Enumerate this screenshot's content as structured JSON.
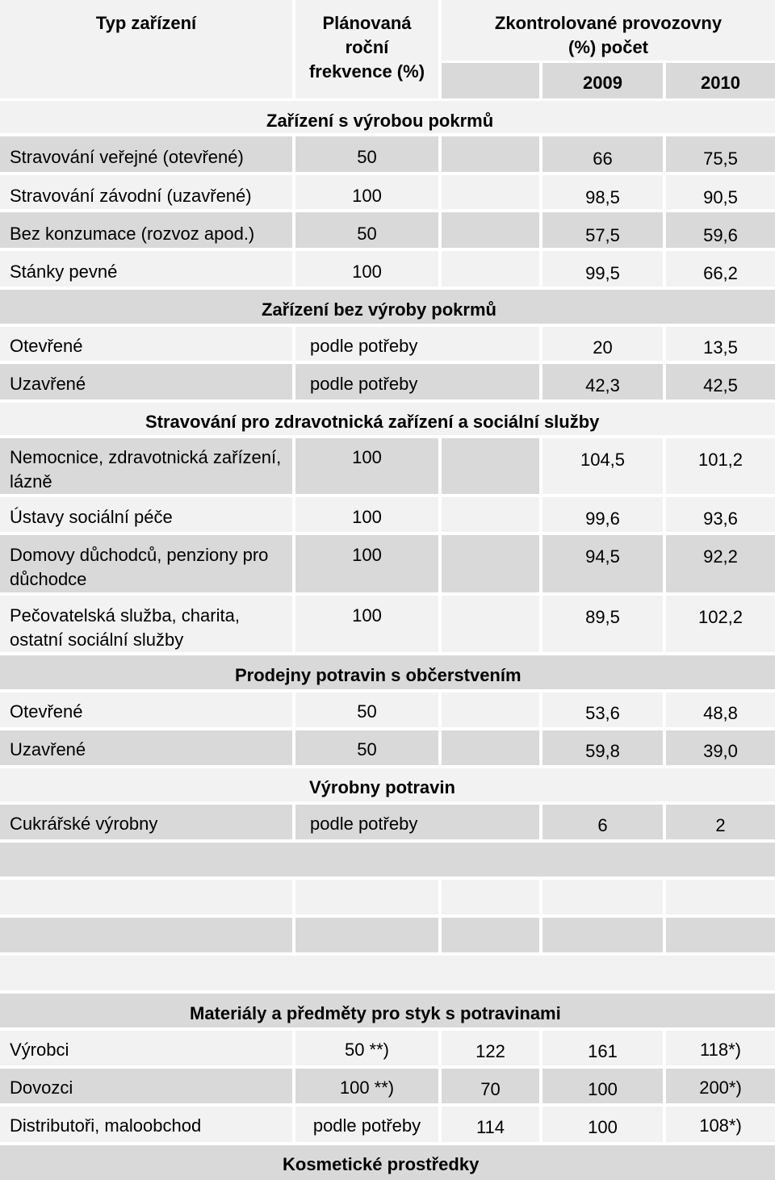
{
  "header": {
    "col_type": "Typ zařízení",
    "col_freq": "Plánovaná roční frekvence (%)",
    "col_checked": "Zkontrolované provozovny (%) počet",
    "year1": "2009",
    "year2": "2010"
  },
  "sections": [
    {
      "title": "Zařízení s výrobou pokrmů",
      "rows": [
        {
          "type": "Stravování veřejné (otevřené)",
          "freq": "50",
          "v2009": "66",
          "v2010": "75,5"
        },
        {
          "type": "Stravování závodní (uzavřené)",
          "freq": "100",
          "v2009": "98,5",
          "v2010": "90,5"
        },
        {
          "type": "Bez konzumace (rozvoz apod.)",
          "freq": "50",
          "v2009": "57,5",
          "v2010": "59,6"
        },
        {
          "type": "Stánky pevné",
          "freq": "100",
          "v2009": "99,5",
          "v2010": "66,2"
        }
      ]
    },
    {
      "title": "Zařízení bez výroby pokrmů",
      "rows": [
        {
          "type": "Otevřené",
          "freq": "podle potřeby",
          "v2009": "20",
          "v2010": "13,5"
        },
        {
          "type": "Uzavřené",
          "freq": "podle potřeby",
          "v2009": "42,3",
          "v2010": "42,5"
        }
      ]
    },
    {
      "title": "Stravování pro zdravotnická zařízení a sociální služby",
      "rows": [
        {
          "type": "Nemocnice, zdravotnická zařízení, lázně",
          "freq": "100",
          "v2009": "104,5",
          "v2010": "101,2"
        },
        {
          "type": "Ústavy sociální péče",
          "freq": "100",
          "v2009": "99,6",
          "v2010": "93,6"
        },
        {
          "type": "Domovy důchodců, penziony pro důchodce",
          "freq": "100",
          "v2009": "94,5",
          "v2010": "92,2"
        },
        {
          "type": "Pečovatelská služba, charita, ostatní sociální služby",
          "freq": "100",
          "v2009": "89,5",
          "v2010": "102,2"
        }
      ]
    },
    {
      "title": "Prodejny potravin s občerstvením",
      "rows": [
        {
          "type": "Otevřené",
          "freq": "50",
          "v2009": "53,6",
          "v2010": "48,8"
        },
        {
          "type": "Uzavřené",
          "freq": "50",
          "v2009": "59,8",
          "v2010": "39,0"
        }
      ]
    },
    {
      "title": "Výrobny potravin",
      "rows": [
        {
          "type": "Cukrářské výrobny",
          "freq": "podle potřeby",
          "v2009": "6",
          "v2010": "2"
        }
      ]
    },
    {
      "title": "Materiály a předměty pro styk s potravinami",
      "rows": [
        {
          "type": "Výrobci",
          "freq": "50 **)",
          "a": "122",
          "b": "161",
          "c": "118*)"
        },
        {
          "type": "Dovozci",
          "freq": "100 **)",
          "a": "70",
          "b": "100",
          "c": "200*)"
        },
        {
          "type": "Distributoři, maloobchod",
          "freq": "podle potřeby",
          "a": "114",
          "b": "100",
          "c": "108*)"
        }
      ]
    },
    {
      "title": "Kosmetické prostředky",
      "rows": []
    }
  ]
}
